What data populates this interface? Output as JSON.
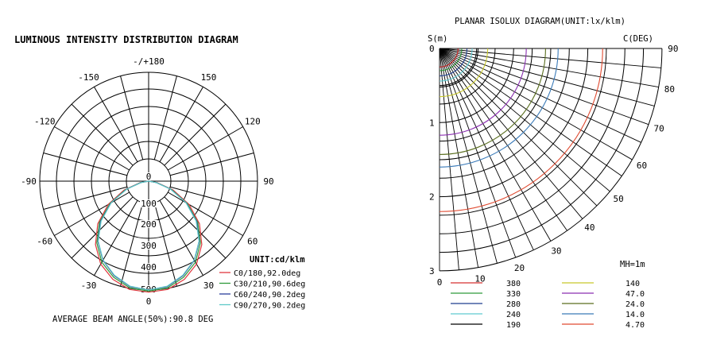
{
  "polar": {
    "title": "LUMINOUS INTENSITY DISTRIBUTION DIAGRAM",
    "footer": "AVERAGE BEAM ANGLE(50%):90.8 DEG",
    "unit": "UNIT:cd/klm",
    "angle_labels": [
      "-/+180",
      "-150",
      "150",
      "-120",
      "120",
      "-90",
      "90",
      "-60",
      "60",
      "-30",
      "30",
      "0"
    ],
    "radial_labels": [
      "0",
      "100",
      "200",
      "300",
      "400",
      "500"
    ],
    "legend": [
      {
        "label": "C0/180,92.0deg",
        "color": "#e0383e"
      },
      {
        "label": "C30/210,90.6deg",
        "color": "#2e9a3a"
      },
      {
        "label": "C60/240,90.2deg",
        "color": "#2b3f9a"
      },
      {
        "label": "C90/270,90.2deg",
        "color": "#5fc9c8"
      }
    ]
  },
  "isolux": {
    "title": "PLANAR ISOLUX DIAGRAM(UNIT:lx/klm)",
    "y_axis_label": "S(m)",
    "arc_axis_label": "C(DEG)",
    "mh": "MH=1m",
    "y_ticks": [
      "0",
      "1",
      "2",
      "3"
    ],
    "angle_ticks": [
      "90",
      "80",
      "70",
      "60",
      "50",
      "40",
      "30",
      "20",
      "10",
      "0"
    ],
    "legend": [
      {
        "value": "380",
        "color": "#d63030"
      },
      {
        "value": "330",
        "color": "#2e9a3a"
      },
      {
        "value": "280",
        "color": "#1f3f8f"
      },
      {
        "value": "240",
        "color": "#5fc9d0"
      },
      {
        "value": "190",
        "color": "#000000"
      },
      {
        "value": "140",
        "color": "#c8c82a"
      },
      {
        "value": "47.0",
        "color": "#8a2fb0"
      },
      {
        "value": "24.0",
        "color": "#5a6e1e"
      },
      {
        "value": "14.0",
        "color": "#3a7ab8"
      },
      {
        "value": "4.70",
        "color": "#e04a30"
      }
    ]
  },
  "chart_data": [
    {
      "type": "polar",
      "title": "LUMINOUS INTENSITY DISTRIBUTION DIAGRAM",
      "unit": "UNIT:cd/klm",
      "r_range": [
        0,
        500
      ],
      "r_ticks": [
        0,
        100,
        200,
        300,
        400,
        500
      ],
      "angle_range_deg": [
        -180,
        180
      ],
      "angle_step_deg": 15,
      "series": [
        {
          "name": "C0/180,92.0deg",
          "color": "#e0383e",
          "angles": [
            0,
            10,
            20,
            30,
            40,
            50,
            60,
            70,
            80,
            90
          ],
          "values": [
            510,
            505,
            480,
            440,
            380,
            305,
            215,
            120,
            40,
            0
          ]
        },
        {
          "name": "C30/210,90.6deg",
          "color": "#2e9a3a",
          "angles": [
            0,
            10,
            20,
            30,
            40,
            50,
            60,
            70,
            80,
            90
          ],
          "values": [
            505,
            498,
            470,
            430,
            370,
            295,
            205,
            112,
            36,
            0
          ]
        },
        {
          "name": "C60/240,90.2deg",
          "color": "#2b3f9a",
          "angles": [
            0,
            10,
            20,
            30,
            40,
            50,
            60,
            70,
            80,
            90
          ],
          "values": [
            500,
            492,
            462,
            420,
            362,
            288,
            200,
            108,
            34,
            0
          ]
        },
        {
          "name": "C90/270,90.2deg",
          "color": "#5fc9c8",
          "angles": [
            0,
            10,
            20,
            30,
            40,
            50,
            60,
            70,
            80,
            90
          ],
          "values": [
            500,
            490,
            460,
            418,
            360,
            285,
            198,
            106,
            33,
            0
          ]
        }
      ]
    },
    {
      "type": "isolux",
      "title": "PLANAR ISOLUX DIAGRAM(UNIT:lx/klm)",
      "ylabel": "S(m)",
      "ylim": [
        0,
        3
      ],
      "angle_range_deg": [
        0,
        90
      ],
      "levels": [
        {
          "value": 380,
          "color": "#d63030",
          "radius_m": 0.25
        },
        {
          "value": 330,
          "color": "#2e9a3a",
          "radius_m": 0.3
        },
        {
          "value": 280,
          "color": "#1f3f8f",
          "radius_m": 0.37
        },
        {
          "value": 240,
          "color": "#5fc9d0",
          "radius_m": 0.44
        },
        {
          "value": 190,
          "color": "#000000",
          "radius_m": 0.52
        },
        {
          "value": 140,
          "color": "#c8c82a",
          "radius_m": 0.65
        },
        {
          "value": 47.0,
          "color": "#8a2fb0",
          "radius_m": 1.17
        },
        {
          "value": 24.0,
          "color": "#5a6e1e",
          "radius_m": 1.43
        },
        {
          "value": 14.0,
          "color": "#3a7ab8",
          "radius_m": 1.6
        },
        {
          "value": 4.7,
          "color": "#e04a30",
          "radius_m": 2.2
        }
      ]
    }
  ]
}
